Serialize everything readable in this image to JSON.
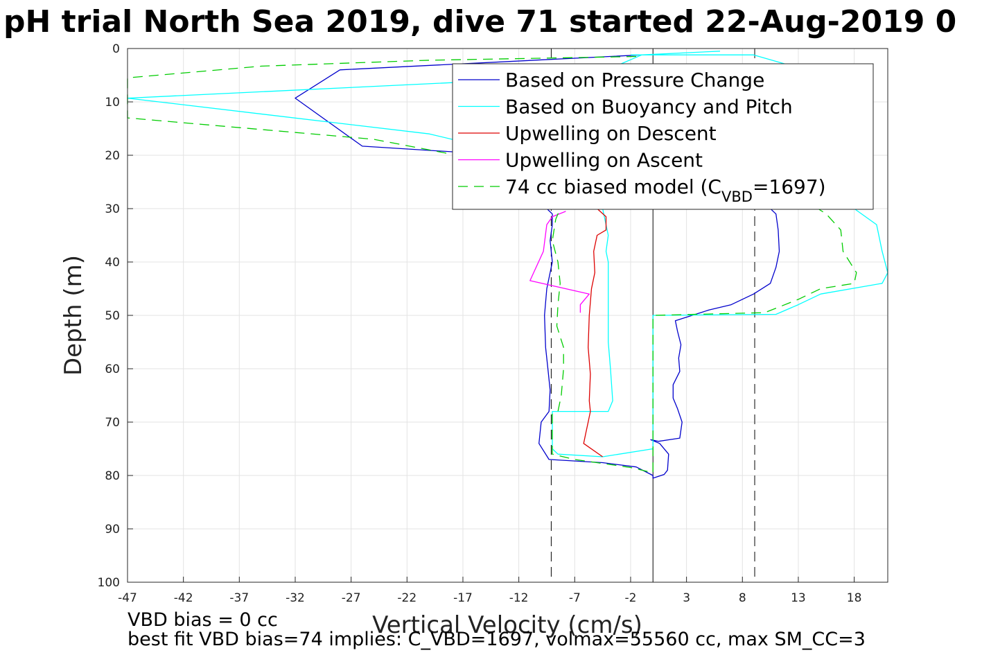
{
  "chart_data": {
    "type": "line",
    "title": "pH trial North Sea 2019, dive 71 started 22-Aug-2019 0",
    "xlabel": "Vertical Velocity (cm/s)",
    "ylabel": "Depth (m)",
    "xlim": [
      -47,
      21
    ],
    "ylim": [
      0,
      100
    ],
    "y_reversed": true,
    "grid": true,
    "legend_position": "top-right",
    "xticks": [
      -47,
      -42,
      -37,
      -32,
      -27,
      -22,
      -17,
      -12,
      -7,
      -2,
      3,
      8,
      13,
      18
    ],
    "yticks": [
      0,
      10,
      20,
      30,
      40,
      50,
      60,
      70,
      80,
      90,
      100
    ],
    "series": [
      {
        "name": "Based on Pressure Change",
        "color": "#0000cc",
        "dash": "",
        "points": [
          [
            -1,
            1.2
          ],
          [
            -28,
            4
          ],
          [
            -32,
            9.3
          ],
          [
            -26,
            18.3
          ],
          [
            -13,
            20
          ],
          [
            -9.5,
            30
          ],
          [
            -9,
            31
          ],
          [
            -9,
            33
          ],
          [
            -9.2,
            36
          ],
          [
            -9,
            40
          ],
          [
            -9.3,
            43
          ],
          [
            -9.5,
            45
          ],
          [
            -9.7,
            50
          ],
          [
            -9.6,
            56
          ],
          [
            -9.4,
            60
          ],
          [
            -9.2,
            64
          ],
          [
            -9.3,
            68
          ],
          [
            -10,
            70
          ],
          [
            -10.2,
            74
          ],
          [
            -9.3,
            77
          ],
          [
            -4.5,
            77.6
          ],
          [
            -1.5,
            78.4
          ],
          [
            0,
            80
          ],
          [
            0,
            80.5
          ],
          [
            1,
            79.8
          ],
          [
            1.3,
            79
          ],
          [
            1.4,
            76
          ],
          [
            0.6,
            74
          ],
          [
            -0.2,
            73.3
          ],
          [
            0.5,
            73.6
          ],
          [
            2.4,
            73
          ],
          [
            2.6,
            70
          ],
          [
            2.2,
            67.5
          ],
          [
            1.8,
            65.5
          ],
          [
            1.8,
            63
          ],
          [
            2.4,
            60.5
          ],
          [
            2.3,
            58
          ],
          [
            2.5,
            55.5
          ],
          [
            2.2,
            53
          ],
          [
            2.0,
            51
          ],
          [
            5,
            49
          ],
          [
            7,
            48
          ],
          [
            9,
            46
          ],
          [
            10.5,
            44
          ],
          [
            11,
            41
          ],
          [
            11.3,
            38
          ],
          [
            11.2,
            34
          ],
          [
            11.0,
            31
          ],
          [
            10,
            29
          ],
          [
            8,
            28
          ],
          [
            5,
            27
          ],
          [
            1,
            27
          ]
        ]
      },
      {
        "name": "Based on Buoyancy and Pitch",
        "color": "#00ffff",
        "dash": "",
        "points": [
          [
            -2,
            1.2
          ],
          [
            9,
            1.2
          ],
          [
            12,
            3
          ],
          [
            15,
            6
          ],
          [
            16,
            10
          ],
          [
            18,
            14
          ],
          [
            19.5,
            20
          ],
          [
            19,
            25
          ],
          [
            18,
            30
          ],
          [
            20,
            33
          ],
          [
            20.5,
            38
          ],
          [
            21,
            42
          ],
          [
            20.5,
            44
          ],
          [
            15,
            46
          ],
          [
            13,
            48
          ],
          [
            11,
            49.8
          ],
          [
            0,
            50
          ],
          [
            0,
            75
          ],
          [
            -4.5,
            76.5
          ],
          [
            -8.5,
            76
          ],
          [
            -9,
            75
          ],
          [
            -9,
            70
          ],
          [
            -9,
            68
          ],
          [
            -4,
            68
          ],
          [
            -3.6,
            66
          ],
          [
            -3.8,
            60
          ],
          [
            -4,
            55
          ],
          [
            -4,
            50
          ],
          [
            -4,
            45
          ],
          [
            -4,
            40
          ],
          [
            -4.2,
            38
          ],
          [
            -4,
            35
          ],
          [
            -4.5,
            30
          ],
          [
            -14,
            19
          ],
          [
            -20,
            16
          ],
          [
            -47,
            9.3
          ],
          [
            -14,
            6
          ],
          [
            -3,
            3
          ],
          [
            -1,
            1.2
          ],
          [
            6,
            0.5
          ]
        ]
      },
      {
        "name": "Upwelling on Descent",
        "color": "#dd0000",
        "dash": "",
        "points": [
          [
            -5,
            30
          ],
          [
            -4.2,
            31.5
          ],
          [
            -4.2,
            34
          ],
          [
            -5,
            35
          ],
          [
            -5.3,
            38
          ],
          [
            -5.2,
            42
          ],
          [
            -5.5,
            45
          ],
          [
            -5.7,
            50
          ],
          [
            -5.8,
            56
          ],
          [
            -5.6,
            61
          ],
          [
            -5.7,
            66
          ],
          [
            -5.6,
            68
          ],
          [
            -5.8,
            70
          ],
          [
            -6,
            72
          ],
          [
            -6.2,
            74
          ],
          [
            -4.5,
            76.5
          ]
        ]
      },
      {
        "name": "Upwelling on Ascent",
        "color": "#ff00ff",
        "dash": "",
        "points": [
          [
            -7.8,
            30.5
          ],
          [
            -9,
            31.5
          ],
          [
            -9.5,
            33
          ],
          [
            -9.8,
            38
          ],
          [
            -11,
            43.5
          ],
          [
            -5.7,
            46
          ],
          [
            -6.5,
            48
          ],
          [
            -6.5,
            49.5
          ]
        ]
      },
      {
        "name": "74 cc biased model (C<sub>VBD</sub>=1697)",
        "legend_text": "74 cc biased model (C",
        "legend_sub": "VBD",
        "legend_tail": "=1697)",
        "color": "#00cc00",
        "dash": "14,9",
        "points": [
          [
            -1.5,
            1.5
          ],
          [
            -20,
            2.2
          ],
          [
            -35,
            3.3
          ],
          [
            -47,
            5.5
          ],
          [
            -47,
            13
          ],
          [
            -25,
            17
          ],
          [
            -15,
            21
          ],
          [
            -10,
            28
          ],
          [
            -8.3,
            30
          ],
          [
            -8.7,
            32
          ],
          [
            -9,
            36
          ],
          [
            -8.5,
            40
          ],
          [
            -8.3,
            44
          ],
          [
            -8.5,
            48
          ],
          [
            -8.6,
            52
          ],
          [
            -8,
            56
          ],
          [
            -8,
            60
          ],
          [
            -8.2,
            65
          ],
          [
            -8.5,
            68
          ],
          [
            -9,
            68.5
          ],
          [
            -9,
            76
          ],
          [
            -7,
            77
          ],
          [
            -2,
            78.5
          ],
          [
            0,
            79.5
          ],
          [
            0,
            50
          ],
          [
            10,
            49.5
          ],
          [
            13,
            47
          ],
          [
            15,
            45
          ],
          [
            18,
            44
          ],
          [
            18.2,
            42
          ],
          [
            17,
            38
          ],
          [
            16.8,
            34
          ],
          [
            15.5,
            31
          ],
          [
            14,
            29
          ],
          [
            11,
            27
          ],
          [
            6,
            26
          ],
          [
            2,
            25
          ]
        ]
      }
    ],
    "reference_lines": [
      {
        "x": 0,
        "style": "solid",
        "color": "#000000"
      },
      {
        "x": -9.1,
        "style": "dashed",
        "color": "#000000"
      },
      {
        "x": 9.1,
        "style": "dashed",
        "color": "#000000"
      }
    ]
  },
  "footer": {
    "line1": "VBD bias = 0 cc",
    "line2": "best fit VBD bias=74 implies: C_VBD=1697, volmax=55560 cc, max SM_CC=3"
  }
}
